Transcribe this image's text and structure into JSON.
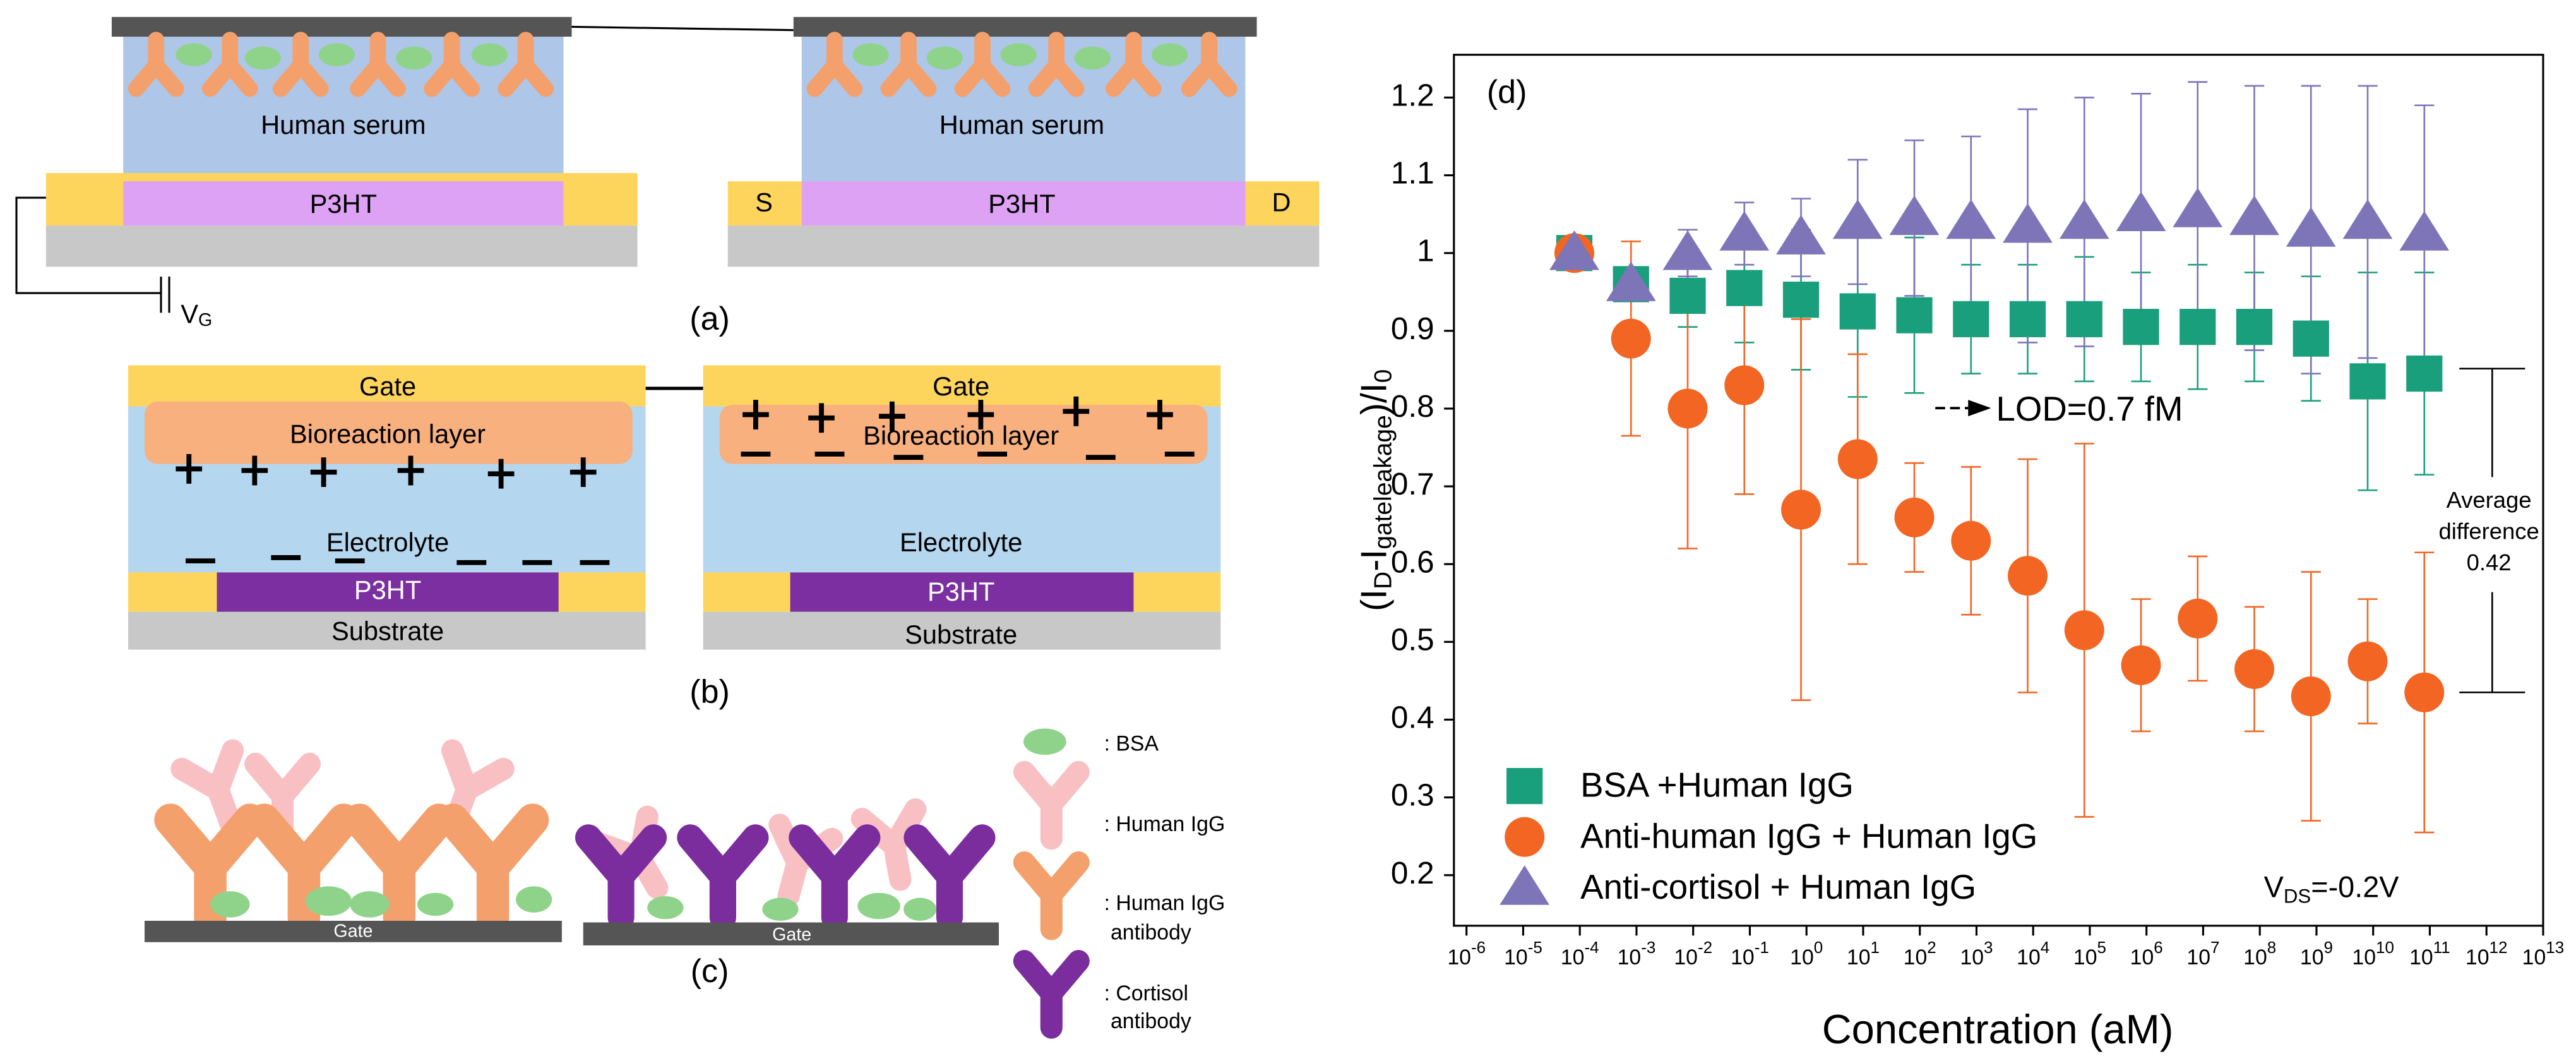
{
  "panel_a": {
    "serum_left": "Human serum",
    "channel_left": "P3HT",
    "serum_right": "Human serum",
    "channel_right": "P3HT",
    "source": "S",
    "drain": "D",
    "gate_voltage": [
      "V",
      "G"
    ],
    "label": "(a)"
  },
  "panel_b": {
    "gate_left": "Gate",
    "layer_left": "Bioreaction layer",
    "electrolyte_left": "Electrolyte",
    "channel_left": "P3HT",
    "substrate_left": "Substrate",
    "gate_right": "Gate",
    "layer_right": "Bioreaction layer",
    "electrolyte_right": "Electrolyte",
    "channel_right": "P3HT",
    "substrate_right": "Substrate",
    "label": "(b)"
  },
  "panel_c": {
    "gate_left": "Gate",
    "gate_right": "Gate",
    "label": "(c)",
    "legend": [
      {
        "lines": [
          ": BSA"
        ]
      },
      {
        "lines": [
          ": Human IgG"
        ]
      },
      {
        "lines": [
          ": Human IgG",
          "antibody"
        ]
      },
      {
        "lines": [
          ": Cortisol",
          "antibody"
        ]
      }
    ]
  },
  "chart_data": {
    "type": "scatter",
    "title": "(d)",
    "xlabel": "Concentration (aM)",
    "ylabel": [
      "(I",
      "D",
      "-I",
      "gateleakage",
      ")/I",
      "0"
    ],
    "xscale": "log",
    "xlim": [
      6e-07,
      10000000000000.0
    ],
    "xticks": [
      {
        "value": 1e-06,
        "label": [
          "10",
          "-6"
        ]
      },
      {
        "value": 1e-05,
        "label": [
          "10",
          "-5"
        ]
      },
      {
        "value": 0.0001,
        "label": [
          "10",
          "-4"
        ]
      },
      {
        "value": 0.001,
        "label": [
          "10",
          "-3"
        ]
      },
      {
        "value": 0.01,
        "label": [
          "10",
          "-2"
        ]
      },
      {
        "value": 0.1,
        "label": [
          "10",
          "-1"
        ]
      },
      {
        "value": 1,
        "label": [
          "10",
          "0"
        ]
      },
      {
        "value": 10,
        "label": [
          "10",
          "1"
        ]
      },
      {
        "value": 100,
        "label": [
          "10",
          "2"
        ]
      },
      {
        "value": 1000,
        "label": [
          "10",
          "3"
        ]
      },
      {
        "value": 10000,
        "label": [
          "10",
          "4"
        ]
      },
      {
        "value": 100000,
        "label": [
          "10",
          "5"
        ]
      },
      {
        "value": 1000000,
        "label": [
          "10",
          "6"
        ]
      },
      {
        "value": 10000000,
        "label": [
          "10",
          "7"
        ]
      },
      {
        "value": 100000000,
        "label": [
          "10",
          "8"
        ]
      },
      {
        "value": 1000000000,
        "label": [
          "10",
          "9"
        ]
      },
      {
        "value": 10000000000,
        "label": [
          "10",
          "10"
        ]
      },
      {
        "value": 100000000000,
        "label": [
          "10",
          "11"
        ]
      },
      {
        "value": 1000000000000,
        "label": [
          "10",
          "12"
        ]
      },
      {
        "value": 10000000000000,
        "label": [
          "10",
          "13"
        ]
      }
    ],
    "ylim": [
      0.135,
      1.255
    ],
    "yticks": [
      0.2,
      0.3,
      0.4,
      0.5,
      0.6,
      0.7,
      0.8,
      0.9,
      1.0,
      1.1,
      1.2
    ],
    "x": [
      8e-05,
      0.0008,
      0.008,
      0.08,
      0.8,
      8,
      80,
      800,
      8000,
      80000,
      800000,
      8000000,
      80000000,
      800000000,
      8000000000,
      80000000000
    ],
    "series": [
      {
        "name": "BSA +Human IgG",
        "color": "#1a9f7d",
        "marker": "square",
        "values": [
          1.0,
          0.96,
          0.945,
          0.955,
          0.94,
          0.925,
          0.92,
          0.915,
          0.915,
          0.915,
          0.905,
          0.905,
          0.905,
          0.89,
          0.835,
          0.845
        ],
        "errors": [
          0.01,
          0.02,
          0.04,
          0.07,
          0.09,
          0.11,
          0.1,
          0.07,
          0.07,
          0.08,
          0.07,
          0.08,
          0.07,
          0.08,
          0.14,
          0.13
        ]
      },
      {
        "name": "Anti-human IgG + Human IgG",
        "color": "#f26522",
        "marker": "circle",
        "values": [
          1.0,
          0.89,
          0.8,
          0.83,
          0.67,
          0.735,
          0.66,
          0.63,
          0.585,
          0.515,
          0.47,
          0.53,
          0.465,
          0.43,
          0.475,
          0.435
        ],
        "errors": [
          0.01,
          0.125,
          0.18,
          0.14,
          0.245,
          0.135,
          0.07,
          0.095,
          0.15,
          0.24,
          0.085,
          0.08,
          0.08,
          0.16,
          0.08,
          0.18
        ]
      },
      {
        "name": "Anti-cortisol + Human IgG",
        "color": "#7e74b8",
        "marker": "triangle",
        "values": [
          1.0,
          0.96,
          1.0,
          1.025,
          1.02,
          1.04,
          1.045,
          1.04,
          1.035,
          1.04,
          1.05,
          1.055,
          1.045,
          1.03,
          1.04,
          1.025
        ],
        "errors": [
          0.01,
          0.02,
          0.03,
          0.04,
          0.05,
          0.08,
          0.1,
          0.11,
          0.15,
          0.16,
          0.155,
          0.165,
          0.17,
          0.185,
          0.175,
          0.165
        ]
      }
    ],
    "legend": "lower left",
    "annotations": {
      "lod": "LOD=0.7 fM",
      "difference": [
        "Average",
        "difference",
        "0.42"
      ],
      "vds": [
        "V",
        "DS",
        "=-0.2V"
      ]
    }
  }
}
